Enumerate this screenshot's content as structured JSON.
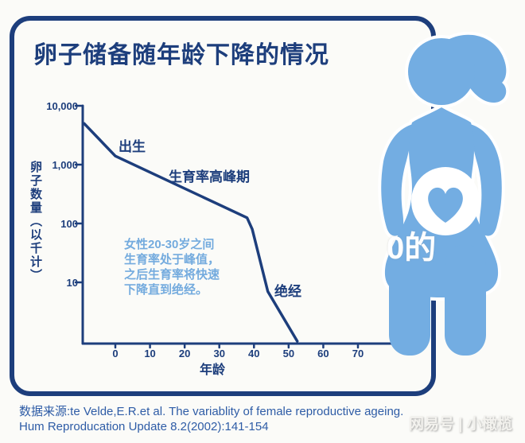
{
  "colors": {
    "navy": "#1d3e7c",
    "light_blue": "#74abde",
    "figure_blue": "#73ade2",
    "source_blue": "#2e5ca6",
    "background": "#fbfbf8"
  },
  "title": "卵子储备随年龄下降的情况",
  "chart_data": {
    "type": "line",
    "title": "卵子储备随年龄下降的情况",
    "xlabel": "年龄",
    "ylabel": "卵子数量（以千计）",
    "y_scale": "log",
    "ylim": [
      1,
      10000
    ],
    "xlim": [
      -9,
      75
    ],
    "grid": false,
    "legend": "none",
    "xticks": [
      0,
      10,
      20,
      30,
      40,
      50,
      60,
      70
    ],
    "yticks": [
      {
        "label": "10,000",
        "value": 10000
      },
      {
        "label": "1,000",
        "value": 1000
      },
      {
        "label": "100",
        "value": 100
      },
      {
        "label": "10",
        "value": 10
      }
    ],
    "series": [
      {
        "name": "卵子数量(以千计)",
        "points": [
          {
            "age": -9,
            "value": 5000
          },
          {
            "age": 0,
            "value": 1400
          },
          {
            "age": 38,
            "value": 125
          },
          {
            "age": 39.5,
            "value": 80
          },
          {
            "age": 44,
            "value": 7
          },
          {
            "age": 52.5,
            "value": 1
          }
        ]
      }
    ],
    "annotations": [
      "出生",
      "生育率高峰期",
      "绝经",
      "女性20-30岁之间生育率处于峰值，之后生育率将快速下降直到绝经。"
    ]
  },
  "labels": {
    "birth": "出生",
    "peak": "生育率高峰期",
    "menopause": "绝经"
  },
  "annotation": {
    "lines": [
      "女性20-30岁之间",
      "生育率处于峰值，",
      "之后生育率将快速",
      "下降直到绝经。"
    ]
  },
  "axis": {
    "x_title": "年龄",
    "y_title": "卵子数量（以千计）"
  },
  "source": {
    "line1": "数据来源:te Velde,E.R.et al. The variablity of female reproductive ageing.",
    "line2": "Hum Reproducation Update 8.2(2002):141-154"
  },
  "watermarks": {
    "center": "0的",
    "bottom_right": "网易号 | 小橄榄"
  }
}
